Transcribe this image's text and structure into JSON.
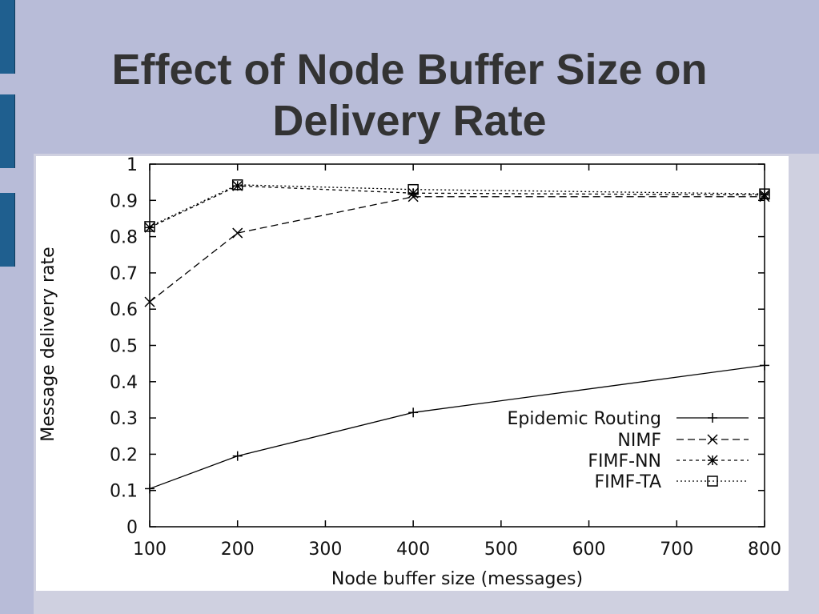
{
  "slide": {
    "title_line1": "Effect of Node Buffer Size on",
    "title_line2": "Delivery Rate",
    "background": "#b8bcd8",
    "accent": "#1f5f8f"
  },
  "chart_data": {
    "type": "line",
    "xlabel": "Node buffer size (messages)",
    "ylabel": "Message delivery rate",
    "xlim": [
      100,
      800
    ],
    "ylim": [
      0,
      1
    ],
    "xticks": [
      100,
      200,
      300,
      400,
      500,
      600,
      700,
      800
    ],
    "yticks": [
      0,
      0.1,
      0.2,
      0.3,
      0.4,
      0.5,
      0.6,
      0.7,
      0.8,
      0.9,
      1
    ],
    "ytick_labels": [
      "0",
      "0.1",
      "0.2",
      "0.3",
      "0.4",
      "0.5",
      "0.6",
      "0.7",
      "0.8",
      "0.9",
      "1"
    ],
    "legend_position": "bottom-right",
    "grid": false,
    "series": [
      {
        "name": "Epidemic Routing",
        "marker": "plus",
        "dash": "solid",
        "points": [
          [
            100,
            0.105
          ],
          [
            200,
            0.195
          ],
          [
            400,
            0.315
          ],
          [
            800,
            0.445
          ]
        ]
      },
      {
        "name": "NIMF",
        "marker": "x",
        "dash": "dashed",
        "points": [
          [
            100,
            0.62
          ],
          [
            200,
            0.81
          ],
          [
            400,
            0.91
          ],
          [
            800,
            0.91
          ]
        ]
      },
      {
        "name": "FIMF-NN",
        "marker": "star",
        "dash": "short-dashed",
        "points": [
          [
            100,
            0.825
          ],
          [
            200,
            0.94
          ],
          [
            400,
            0.92
          ],
          [
            800,
            0.915
          ]
        ]
      },
      {
        "name": "FIMF-TA",
        "marker": "square",
        "dash": "dotted",
        "points": [
          [
            100,
            0.828
          ],
          [
            200,
            0.943
          ],
          [
            400,
            0.93
          ],
          [
            800,
            0.918
          ]
        ]
      }
    ]
  }
}
